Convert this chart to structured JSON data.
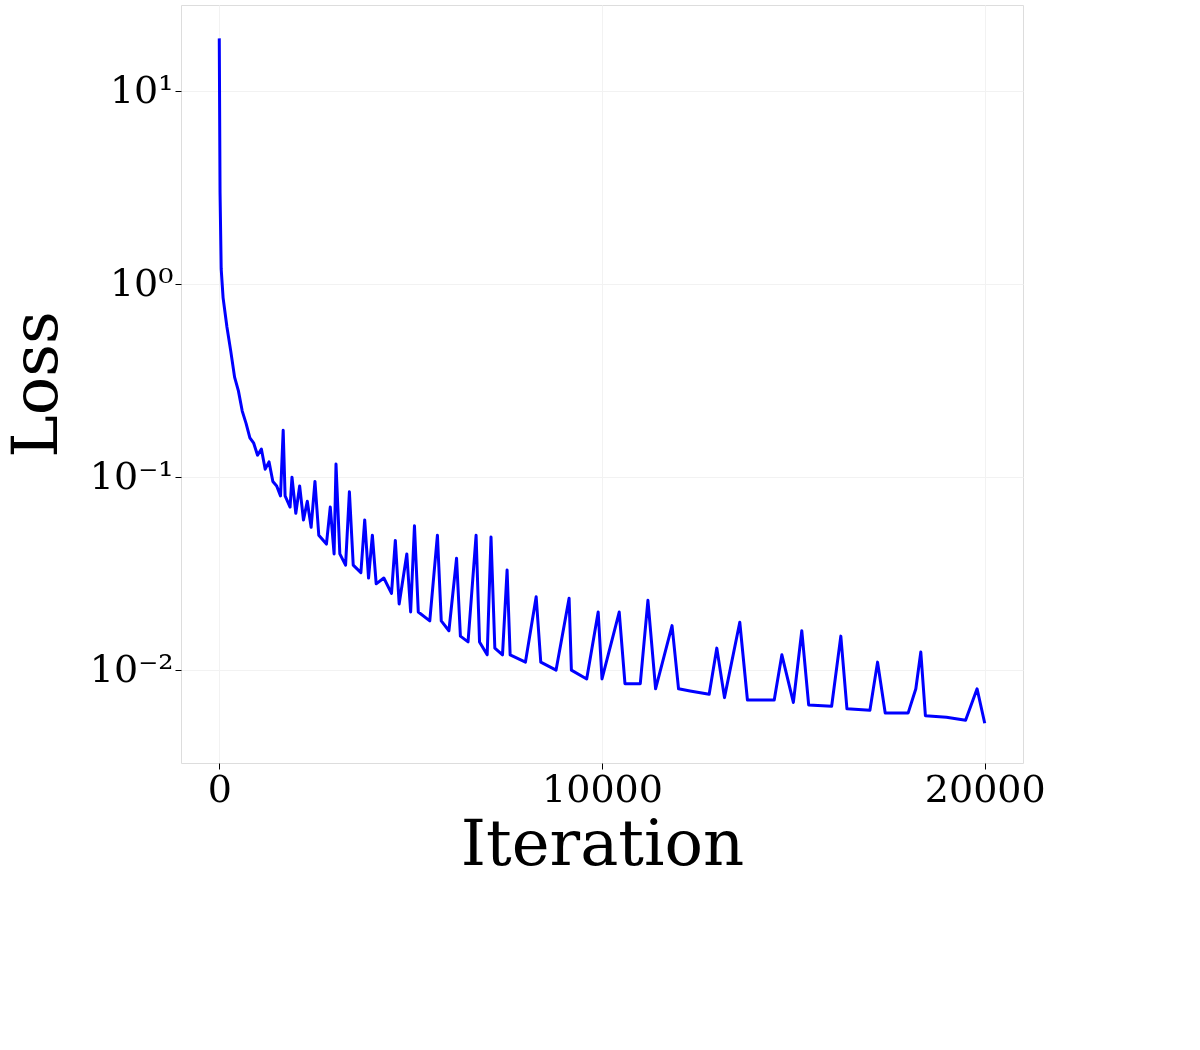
{
  "chart_data": {
    "type": "line",
    "xlabel": "Iteration",
    "ylabel": "Loss",
    "log": "y",
    "grid": true,
    "xlim": [
      -1000,
      21000
    ],
    "xticks": [
      0,
      10000,
      20000
    ],
    "ylim": [
      0.0033,
      28
    ],
    "yticks": [
      {
        "value": 10,
        "label": "10¹"
      },
      {
        "value": 1,
        "label": "10⁰"
      },
      {
        "value": 0.1,
        "label": "10⁻¹"
      },
      {
        "value": 0.01,
        "label": "10⁻²"
      }
    ],
    "series": [
      {
        "color": "#0000ff",
        "x": [
          0,
          20,
          50,
          100,
          200,
          300,
          400,
          500,
          600,
          700,
          800,
          900,
          1000,
          1100,
          1200,
          1300,
          1400,
          1500,
          1600,
          1670,
          1720,
          1850,
          1900,
          2000,
          2100,
          2200,
          2300,
          2400,
          2500,
          2600,
          2800,
          2900,
          3000,
          3050,
          3150,
          3300,
          3400,
          3500,
          3700,
          3800,
          3900,
          4000,
          4100,
          4300,
          4500,
          4600,
          4700,
          4900,
          5000,
          5100,
          5200,
          5500,
          5700,
          5800,
          6000,
          6200,
          6300,
          6500,
          6710,
          6800,
          7000,
          7100,
          7200,
          7400,
          7520,
          7600,
          8000,
          8280,
          8400,
          8800,
          9140,
          9200,
          9600,
          9900,
          10000,
          10450,
          10600,
          11000,
          11200,
          11400,
          11830,
          12000,
          12300,
          12800,
          13000,
          13200,
          13600,
          13800,
          14500,
          14700,
          15000,
          15220,
          15400,
          16000,
          16240,
          16400,
          17000,
          17200,
          17400,
          18000,
          18200,
          18330,
          18450,
          19000,
          19500,
          19800,
          20000
        ],
        "values": [
          18.8,
          3,
          1.2,
          0.85,
          0.6,
          0.45,
          0.33,
          0.28,
          0.22,
          0.19,
          0.16,
          0.15,
          0.13,
          0.14,
          0.11,
          0.12,
          0.095,
          0.09,
          0.08,
          0.175,
          0.08,
          0.07,
          0.1,
          0.065,
          0.09,
          0.06,
          0.075,
          0.055,
          0.095,
          0.05,
          0.045,
          0.07,
          0.04,
          0.117,
          0.04,
          0.035,
          0.084,
          0.035,
          0.032,
          0.06,
          0.03,
          0.05,
          0.028,
          0.03,
          0.025,
          0.047,
          0.022,
          0.04,
          0.02,
          0.056,
          0.02,
          0.018,
          0.05,
          0.018,
          0.016,
          0.038,
          0.015,
          0.014,
          0.05,
          0.014,
          0.012,
          0.049,
          0.013,
          0.012,
          0.033,
          0.012,
          0.011,
          0.024,
          0.011,
          0.01,
          0.0236,
          0.01,
          0.009,
          0.02,
          0.009,
          0.02,
          0.0085,
          0.0085,
          0.023,
          0.008,
          0.017,
          0.008,
          0.0078,
          0.0075,
          0.013,
          0.0072,
          0.0177,
          0.007,
          0.007,
          0.012,
          0.0068,
          0.016,
          0.0066,
          0.0065,
          0.015,
          0.0063,
          0.0062,
          0.011,
          0.006,
          0.006,
          0.008,
          0.0124,
          0.0058,
          0.0057,
          0.0055,
          0.008,
          0.0053
        ]
      }
    ]
  }
}
